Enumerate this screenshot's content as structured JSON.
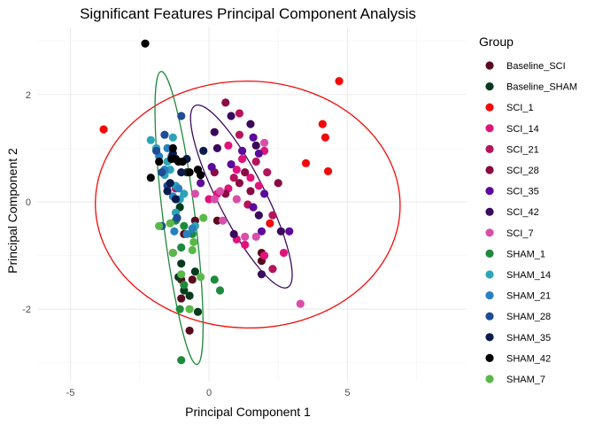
{
  "chart_data": {
    "type": "scatter",
    "title": "Significant Features Principal Component Analysis",
    "xlabel": "Principal Component 1",
    "ylabel": "Principal Component 2",
    "xlim": [
      -6.2,
      9.3
    ],
    "ylim": [
      -3.35,
      3.25
    ],
    "x_ticks": [
      -5,
      0,
      5
    ],
    "x_tick_labels": [
      "-5",
      "0",
      "5"
    ],
    "y_ticks": [
      -2,
      0,
      2
    ],
    "y_tick_labels": [
      "-2",
      "0",
      "2"
    ],
    "grid": true,
    "legend_title": "Group",
    "legend_position": "right",
    "series": [
      {
        "name": "Baseline_SCI",
        "color": "#5a0a1e",
        "points": [
          [
            -1.0,
            -1.8
          ],
          [
            -1.3,
            -0.95
          ],
          [
            -0.9,
            -0.6
          ],
          [
            -1.0,
            -1.45
          ],
          [
            -0.6,
            -1.45
          ],
          [
            -0.7,
            -2.4
          ],
          [
            0.3,
            -0.35
          ],
          [
            1.9,
            -0.95
          ],
          [
            1.9,
            -1.1
          ],
          [
            -0.5,
            -0.35
          ]
        ]
      },
      {
        "name": "Baseline_SHAM",
        "color": "#083a1e",
        "points": [
          [
            -1.1,
            -1.4
          ],
          [
            -0.9,
            -1.65
          ],
          [
            -0.7,
            -1.75
          ],
          [
            -0.4,
            -2.05
          ],
          [
            -0.5,
            -1.3
          ],
          [
            -1.0,
            -1.15
          ],
          [
            -1.05,
            -0.1
          ],
          [
            -0.8,
            0.55
          ]
        ]
      },
      {
        "name": "SCI_1",
        "color": "#f20a0a",
        "points": [
          [
            -3.8,
            1.35
          ],
          [
            4.7,
            2.25
          ],
          [
            4.1,
            1.45
          ],
          [
            4.2,
            1.2
          ],
          [
            3.5,
            0.72
          ],
          [
            4.3,
            0.57
          ],
          [
            2.2,
            -0.4
          ]
        ]
      },
      {
        "name": "SCI_14",
        "color": "#e0137b",
        "points": [
          [
            1.2,
            0.8
          ],
          [
            0.7,
            1.05
          ],
          [
            1.5,
            0.45
          ],
          [
            1.8,
            0.3
          ],
          [
            2.0,
            0.95
          ],
          [
            1.0,
            0.6
          ],
          [
            0.3,
            0.15
          ],
          [
            0.7,
            0.25
          ],
          [
            2.0,
            -1.0
          ],
          [
            2.7,
            -0.95
          ],
          [
            1.3,
            -0.8
          ],
          [
            1.0,
            -0.7
          ],
          [
            0.0,
            0.05
          ]
        ]
      },
      {
        "name": "SCI_21",
        "color": "#b5145a",
        "points": [
          [
            1.1,
            1.25
          ],
          [
            1.7,
            0.75
          ],
          [
            2.1,
            0.55
          ],
          [
            1.4,
            -0.05
          ],
          [
            2.3,
            -0.25
          ],
          [
            2.3,
            -1.25
          ],
          [
            1.1,
            1.65
          ],
          [
            0.9,
            0.45
          ],
          [
            -1.2,
            0.25
          ]
        ]
      },
      {
        "name": "SCI_28",
        "color": "#8a0a44",
        "points": [
          [
            0.6,
            1.85
          ],
          [
            1.3,
            0.55
          ],
          [
            1.1,
            0.35
          ],
          [
            2.5,
            0.35
          ],
          [
            0.2,
            0.55
          ],
          [
            1.5,
            0.2
          ],
          [
            0.6,
            0.15
          ]
        ]
      },
      {
        "name": "SCI_35",
        "color": "#5c0a99",
        "points": [
          [
            1.2,
            0.95
          ],
          [
            1.6,
            1.2
          ],
          [
            1.8,
            0.9
          ],
          [
            2.0,
            0.15
          ],
          [
            1.6,
            -0.1
          ],
          [
            0.8,
            0.7
          ],
          [
            -0.3,
            0.35
          ],
          [
            0.1,
            0.65
          ],
          [
            1.9,
            -0.55
          ],
          [
            2.9,
            -0.55
          ]
        ]
      },
      {
        "name": "SCI_42",
        "color": "#3a0a5c",
        "points": [
          [
            0.2,
            1.3
          ],
          [
            0.8,
            1.6
          ],
          [
            1.5,
            1.45
          ],
          [
            1.7,
            1.05
          ],
          [
            1.8,
            -0.25
          ],
          [
            0.9,
            -0.6
          ],
          [
            2.6,
            -0.55
          ],
          [
            1.9,
            -1.35
          ],
          [
            0.3,
            1.0
          ]
        ]
      },
      {
        "name": "SCI_7",
        "color": "#d94ea8",
        "points": [
          [
            3.3,
            -1.9
          ],
          [
            1.3,
            -0.65
          ],
          [
            1.7,
            -0.65
          ],
          [
            1.0,
            0.05
          ],
          [
            2.0,
            1.1
          ],
          [
            0.4,
            0.2
          ],
          [
            -0.5,
            0.15
          ],
          [
            0.5,
            -0.35
          ],
          [
            0.2,
            0.05
          ]
        ]
      },
      {
        "name": "SHAM_1",
        "color": "#1e8a3c",
        "points": [
          [
            -1.0,
            -2.95
          ],
          [
            -1.05,
            -2.0
          ],
          [
            0.2,
            -1.45
          ],
          [
            0.4,
            -1.65
          ],
          [
            -0.9,
            -1.55
          ],
          [
            -0.6,
            -0.6
          ],
          [
            -1.0,
            -0.85
          ],
          [
            -0.9,
            -0.45
          ],
          [
            -1.2,
            -0.35
          ]
        ]
      },
      {
        "name": "SHAM_14",
        "color": "#2da3b8",
        "points": [
          [
            -2.1,
            1.15
          ],
          [
            -1.9,
            1.0
          ],
          [
            -1.3,
            1.2
          ],
          [
            -1.4,
            0.6
          ],
          [
            -1.2,
            0.3
          ],
          [
            -0.9,
            0.15
          ],
          [
            -1.6,
            0.5
          ],
          [
            -1.05,
            0.05
          ],
          [
            -1.2,
            -0.2
          ],
          [
            -0.5,
            -0.45
          ],
          [
            -1.5,
            0.75
          ]
        ]
      },
      {
        "name": "SHAM_21",
        "color": "#2780c0",
        "points": [
          [
            -1.5,
            1.0
          ],
          [
            -1.8,
            0.85
          ],
          [
            -1.3,
            0.1
          ],
          [
            -0.6,
            -0.5
          ],
          [
            -0.8,
            -0.6
          ],
          [
            -1.25,
            -0.55
          ],
          [
            -1.6,
            0.6
          ],
          [
            -1.1,
            0.25
          ]
        ]
      },
      {
        "name": "SHAM_28",
        "color": "#1e4c96",
        "points": [
          [
            -1.0,
            1.6
          ],
          [
            -1.6,
            1.25
          ],
          [
            -1.7,
            0.55
          ],
          [
            -1.5,
            0.3
          ],
          [
            -1.7,
            -0.45
          ],
          [
            -1.15,
            -0.3
          ],
          [
            -1.9,
            0.95
          ],
          [
            -1.35,
            0.85
          ]
        ]
      },
      {
        "name": "SHAM_35",
        "color": "#0a1a4a",
        "points": [
          [
            -1.3,
            0.9
          ],
          [
            -0.8,
            0.8
          ],
          [
            -1.0,
            0.55
          ],
          [
            -1.5,
            0.2
          ],
          [
            -1.2,
            0.05
          ],
          [
            -0.2,
            0.95
          ],
          [
            -1.4,
            0.35
          ]
        ]
      },
      {
        "name": "SHAM_42",
        "color": "#000000",
        "points": [
          [
            -2.3,
            2.95
          ],
          [
            -1.3,
            1.0
          ],
          [
            -1.2,
            0.8
          ],
          [
            -1.1,
            0.75
          ],
          [
            -0.7,
            0.55
          ],
          [
            -0.4,
            0.6
          ],
          [
            -2.1,
            0.45
          ],
          [
            -1.8,
            0.75
          ],
          [
            -1.35,
            0.8
          ],
          [
            -0.3,
            0.5
          ],
          [
            -0.95,
            0.75
          ]
        ]
      },
      {
        "name": "SHAM_7",
        "color": "#5ab84a",
        "points": [
          [
            -1.3,
            -0.95
          ],
          [
            -0.6,
            -0.9
          ],
          [
            -0.3,
            -1.4
          ],
          [
            -0.7,
            -2.0
          ],
          [
            -0.2,
            -0.3
          ],
          [
            -1.4,
            -0.4
          ],
          [
            -1.0,
            -1.35
          ],
          [
            -1.8,
            -0.45
          ],
          [
            -0.55,
            -0.75
          ]
        ]
      }
    ],
    "ellipses": [
      {
        "group": "SCI_1",
        "color": "#f20a0a",
        "cx": 1.4,
        "cy": -0.05,
        "rx": 5.5,
        "ry": 2.3,
        "angle_deg": 1
      },
      {
        "group": "SCI_42",
        "color": "#3a0a5c",
        "cx": 1.17,
        "cy": 0.1,
        "rx": 0.85,
        "ry": 1.9,
        "angle_deg": -27
      },
      {
        "group": "SHAM_1",
        "color": "#1e8a3c",
        "cx": -1.08,
        "cy": -0.3,
        "rx": 0.58,
        "ry": 2.75,
        "angle_deg": -7
      }
    ]
  }
}
